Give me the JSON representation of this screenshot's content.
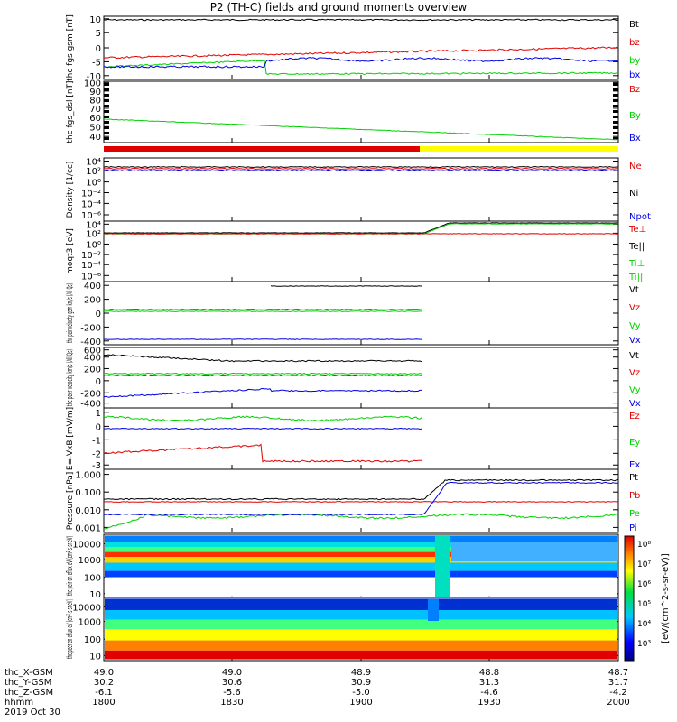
{
  "title": "P2 (TH-C) fields and ground moments overview",
  "colors": {
    "black": "#000000",
    "red": "#e00000",
    "green": "#00d000",
    "blue": "#0000e0"
  },
  "footer": {
    "rows": [
      {
        "label": "thc_X-GSM",
        "values": [
          "49.0",
          "49.0",
          "48.9",
          "48.8",
          "48.7"
        ]
      },
      {
        "label": "thc_Y-GSM",
        "values": [
          "30.2",
          "30.6",
          "30.9",
          "31.3",
          "31.7"
        ]
      },
      {
        "label": "thc_Z-GSM",
        "values": [
          "-6.1",
          "-5.6",
          "-5.0",
          "-4.6",
          "-4.2"
        ]
      },
      {
        "label": "hhmm",
        "values": [
          "1800",
          "1830",
          "1900",
          "1930",
          "2000"
        ]
      }
    ],
    "date": "2019 Oct 30"
  },
  "colorbar": {
    "label": "[eV/(cm^2-s-sr-eV)]"
  },
  "chart_data": [
    {
      "type": "line",
      "ylabel": "thc fgs gsm [nT]",
      "yticks": [
        "10",
        "5",
        "0",
        "-5",
        "-10"
      ],
      "series": [
        {
          "name": "Bt",
          "color": "black"
        },
        {
          "name": "bz",
          "color": "red"
        },
        {
          "name": "by",
          "color": "green"
        },
        {
          "name": "bx",
          "color": "blue"
        }
      ]
    },
    {
      "type": "line",
      "ylabel": "thc fgs_dsl [nT]",
      "yticks": [
        "100",
        "90",
        "80",
        "70",
        "60",
        "50",
        "40"
      ],
      "series": [
        {
          "name": "Bz",
          "color": "red"
        },
        {
          "name": "By",
          "color": "green"
        },
        {
          "name": "Bx",
          "color": "blue"
        }
      ]
    },
    {
      "type": "line",
      "ylabel": "Density [1/cc]",
      "yticks": [
        "10⁴",
        "10²",
        "10⁰",
        "10⁻²",
        "10⁻⁴",
        "10⁻⁶"
      ],
      "series": [
        {
          "name": "Ne",
          "color": "red"
        },
        {
          "name": "Ni",
          "color": "black"
        },
        {
          "name": "Npot",
          "color": "blue"
        }
      ]
    },
    {
      "type": "line",
      "ylabel": "moqt3 [eV]",
      "yticks": [
        "10⁴",
        "10²",
        "10⁰",
        "10⁻²",
        "10⁻⁴",
        "10⁻⁶"
      ],
      "series": [
        {
          "name": "Te⊥",
          "color": "red"
        },
        {
          "name": "Te||",
          "color": "black"
        },
        {
          "name": "Ti⊥",
          "color": "green"
        },
        {
          "name": "Ti||",
          "color": "green"
        }
      ]
    },
    {
      "type": "line",
      "ylabel": "thc peir velocity gsm km/s (All Qs)",
      "yticks": [
        "400",
        "200",
        "0",
        "-200",
        "-400"
      ],
      "series": [
        {
          "name": "Vt",
          "color": "black"
        },
        {
          "name": "Vz",
          "color": "red"
        },
        {
          "name": "Vy",
          "color": "green"
        },
        {
          "name": "Vx",
          "color": "blue"
        }
      ]
    },
    {
      "type": "line",
      "ylabel": "thc peer velocity km/s (All Qs)",
      "yticks": [
        "600",
        "400",
        "200",
        "0",
        "-200",
        "-400"
      ],
      "series": [
        {
          "name": "Vt",
          "color": "black"
        },
        {
          "name": "Vz",
          "color": "red"
        },
        {
          "name": "Vy",
          "color": "green"
        },
        {
          "name": "Vx",
          "color": "blue"
        }
      ]
    },
    {
      "type": "line",
      "ylabel": "E=-VxB [mV/m]",
      "yticks": [
        "1",
        "0",
        "-1",
        "-2",
        "-3"
      ],
      "series": [
        {
          "name": "Ez",
          "color": "red"
        },
        {
          "name": "Ey",
          "color": "green"
        },
        {
          "name": "Ex",
          "color": "blue"
        }
      ]
    },
    {
      "type": "line",
      "ylabel": "Pressure [nPa]",
      "yticks": [
        "1.000",
        "0.100",
        "0.010",
        "0.001"
      ],
      "series": [
        {
          "name": "Pt",
          "color": "black"
        },
        {
          "name": "Pb",
          "color": "red"
        },
        {
          "name": "Pe",
          "color": "green"
        },
        {
          "name": "Pi",
          "color": "blue"
        }
      ]
    },
    {
      "type": "heatmap",
      "ylabel": "thc peir en eflux eV (cm²-s-sr-eV)",
      "yticks": [
        "10000",
        "1000",
        "100",
        "10"
      ]
    },
    {
      "type": "heatmap",
      "ylabel": "thc peer en eflux eV (cm²-s-sr-eV)",
      "yticks": [
        "10000",
        "1000",
        "100",
        "10"
      ]
    }
  ]
}
